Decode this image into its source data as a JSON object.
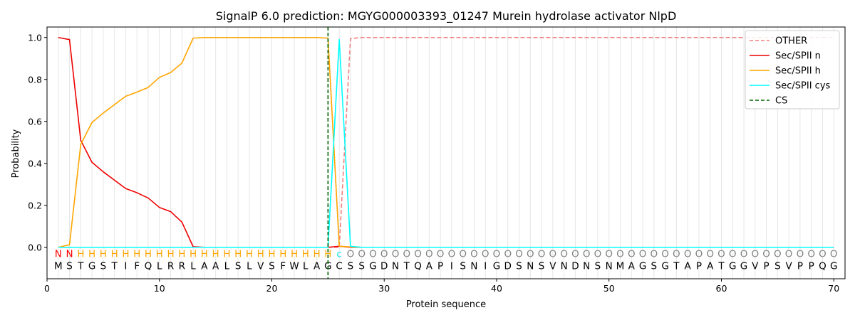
{
  "chart_data": {
    "type": "line",
    "title": "SignalP 6.0 prediction: MGYG000003393_01247 Murein hydrolase activator NlpD",
    "xlabel": "Protein sequence",
    "ylabel": "Probability",
    "xlim": [
      0,
      71
    ],
    "ylim": [
      -0.15,
      1.05
    ],
    "x_ticks": [
      0,
      10,
      20,
      30,
      40,
      50,
      60,
      70
    ],
    "y_ticks": [
      0.0,
      0.2,
      0.4,
      0.6,
      0.8,
      1.0
    ],
    "y_tick_labels": [
      "0.0",
      "0.2",
      "0.4",
      "0.6",
      "0.8",
      "1.0"
    ],
    "grid": "vertical lines at each residue",
    "legend_position": "top-right",
    "sequence": [
      "M",
      "S",
      "T",
      "G",
      "S",
      "T",
      "I",
      "F",
      "Q",
      "L",
      "R",
      "R",
      "L",
      "A",
      "A",
      "L",
      "S",
      "L",
      "V",
      "S",
      "F",
      "W",
      "L",
      "A",
      "G",
      "C",
      "S",
      "S",
      "G",
      "D",
      "N",
      "T",
      "Q",
      "A",
      "P",
      "I",
      "S",
      "N",
      "I",
      "G",
      "D",
      "S",
      "N",
      "S",
      "V",
      "N",
      "D",
      "N",
      "S",
      "N",
      "M",
      "A",
      "G",
      "S",
      "G",
      "T",
      "A",
      "P",
      "A",
      "T",
      "G",
      "G",
      "V",
      "P",
      "S",
      "V",
      "P",
      "P",
      "Q",
      "G"
    ],
    "labels": [
      "N",
      "N",
      "H",
      "H",
      "H",
      "H",
      "H",
      "H",
      "H",
      "H",
      "H",
      "H",
      "H",
      "H",
      "H",
      "H",
      "H",
      "H",
      "H",
      "H",
      "H",
      "H",
      "H",
      "H",
      "H",
      "c",
      "O",
      "O",
      "O",
      "O",
      "O",
      "O",
      "O",
      "O",
      "O",
      "O",
      "O",
      "O",
      "O",
      "O",
      "O",
      "O",
      "O",
      "O",
      "O",
      "O",
      "O",
      "O",
      "O",
      "O",
      "O",
      "O",
      "O",
      "O",
      "O",
      "O",
      "O",
      "O",
      "O",
      "O",
      "O",
      "O",
      "O",
      "O",
      "O",
      "O",
      "O",
      "O",
      "O",
      "O"
    ],
    "label_colors": {
      "N": "#ff0000",
      "H": "#ffa500",
      "c": "#00e5ee",
      "O": "#808080"
    },
    "series": [
      {
        "name": "OTHER",
        "color": "#f08080",
        "dash": "dashed",
        "values": [
          0,
          0,
          0,
          0,
          0,
          0,
          0,
          0,
          0,
          0,
          0,
          0,
          0,
          0,
          0,
          0,
          0,
          0,
          0,
          0,
          0,
          0,
          0,
          0,
          0,
          0.0,
          0.995,
          1.0,
          1.0,
          1.0,
          1.0,
          1.0,
          1.0,
          1.0,
          1.0,
          1.0,
          1.0,
          1.0,
          1.0,
          1.0,
          1.0,
          1.0,
          1.0,
          1.0,
          1.0,
          1.0,
          1.0,
          1.0,
          1.0,
          1.0,
          1.0,
          1.0,
          1.0,
          1.0,
          1.0,
          1.0,
          1.0,
          1.0,
          1.0,
          1.0,
          1.0,
          1.0,
          1.0,
          1.0,
          1.0,
          1.0,
          1.0,
          1.0,
          1.0,
          1.0
        ]
      },
      {
        "name": "Sec/SPII n",
        "color": "#ee0000",
        "dash": "solid",
        "values": [
          1.0,
          0.99,
          0.51,
          0.405,
          0.36,
          0.32,
          0.28,
          0.26,
          0.235,
          0.19,
          0.17,
          0.12,
          0.003,
          0,
          0,
          0,
          0,
          0,
          0,
          0,
          0,
          0,
          0,
          0,
          0,
          0.005,
          0,
          0,
          0,
          0,
          0,
          0,
          0,
          0,
          0,
          0,
          0,
          0,
          0,
          0,
          0,
          0,
          0,
          0,
          0,
          0,
          0,
          0,
          0,
          0,
          0,
          0,
          0,
          0,
          0,
          0,
          0,
          0,
          0,
          0,
          0,
          0,
          0,
          0,
          0,
          0,
          0,
          0,
          0,
          0
        ]
      },
      {
        "name": "Sec/SPII h",
        "color": "#ffa500",
        "dash": "solid",
        "values": [
          0.0,
          0.012,
          0.49,
          0.595,
          0.64,
          0.68,
          0.72,
          0.74,
          0.762,
          0.81,
          0.833,
          0.878,
          0.997,
          1.0,
          1.0,
          1.0,
          1.0,
          1.0,
          1.0,
          1.0,
          1.0,
          1.0,
          1.0,
          1.0,
          0.997,
          0.005,
          0.002,
          0,
          0,
          0,
          0,
          0,
          0,
          0,
          0,
          0,
          0,
          0,
          0,
          0,
          0,
          0,
          0,
          0,
          0,
          0,
          0,
          0,
          0,
          0,
          0,
          0,
          0,
          0,
          0,
          0,
          0,
          0,
          0,
          0,
          0,
          0,
          0,
          0,
          0,
          0,
          0,
          0,
          0,
          0
        ]
      },
      {
        "name": "Sec/SPII cys",
        "color": "#00ffff",
        "dash": "solid",
        "values": [
          0,
          0,
          0,
          0,
          0,
          0,
          0,
          0,
          0,
          0,
          0,
          0,
          0,
          0,
          0,
          0,
          0,
          0,
          0,
          0,
          0,
          0,
          0,
          0,
          0,
          0.99,
          0.005,
          0,
          0,
          0,
          0,
          0,
          0,
          0,
          0,
          0,
          0,
          0,
          0,
          0,
          0,
          0,
          0,
          0,
          0,
          0,
          0,
          0,
          0,
          0,
          0,
          0,
          0,
          0,
          0,
          0,
          0,
          0,
          0,
          0,
          0,
          0,
          0,
          0,
          0,
          0,
          0,
          0,
          0,
          0
        ]
      }
    ],
    "cs": {
      "name": "CS",
      "x": 25,
      "color": "#006400"
    },
    "legend": [
      "OTHER",
      "Sec/SPII n",
      "Sec/SPII h",
      "Sec/SPII cys",
      "CS"
    ]
  }
}
